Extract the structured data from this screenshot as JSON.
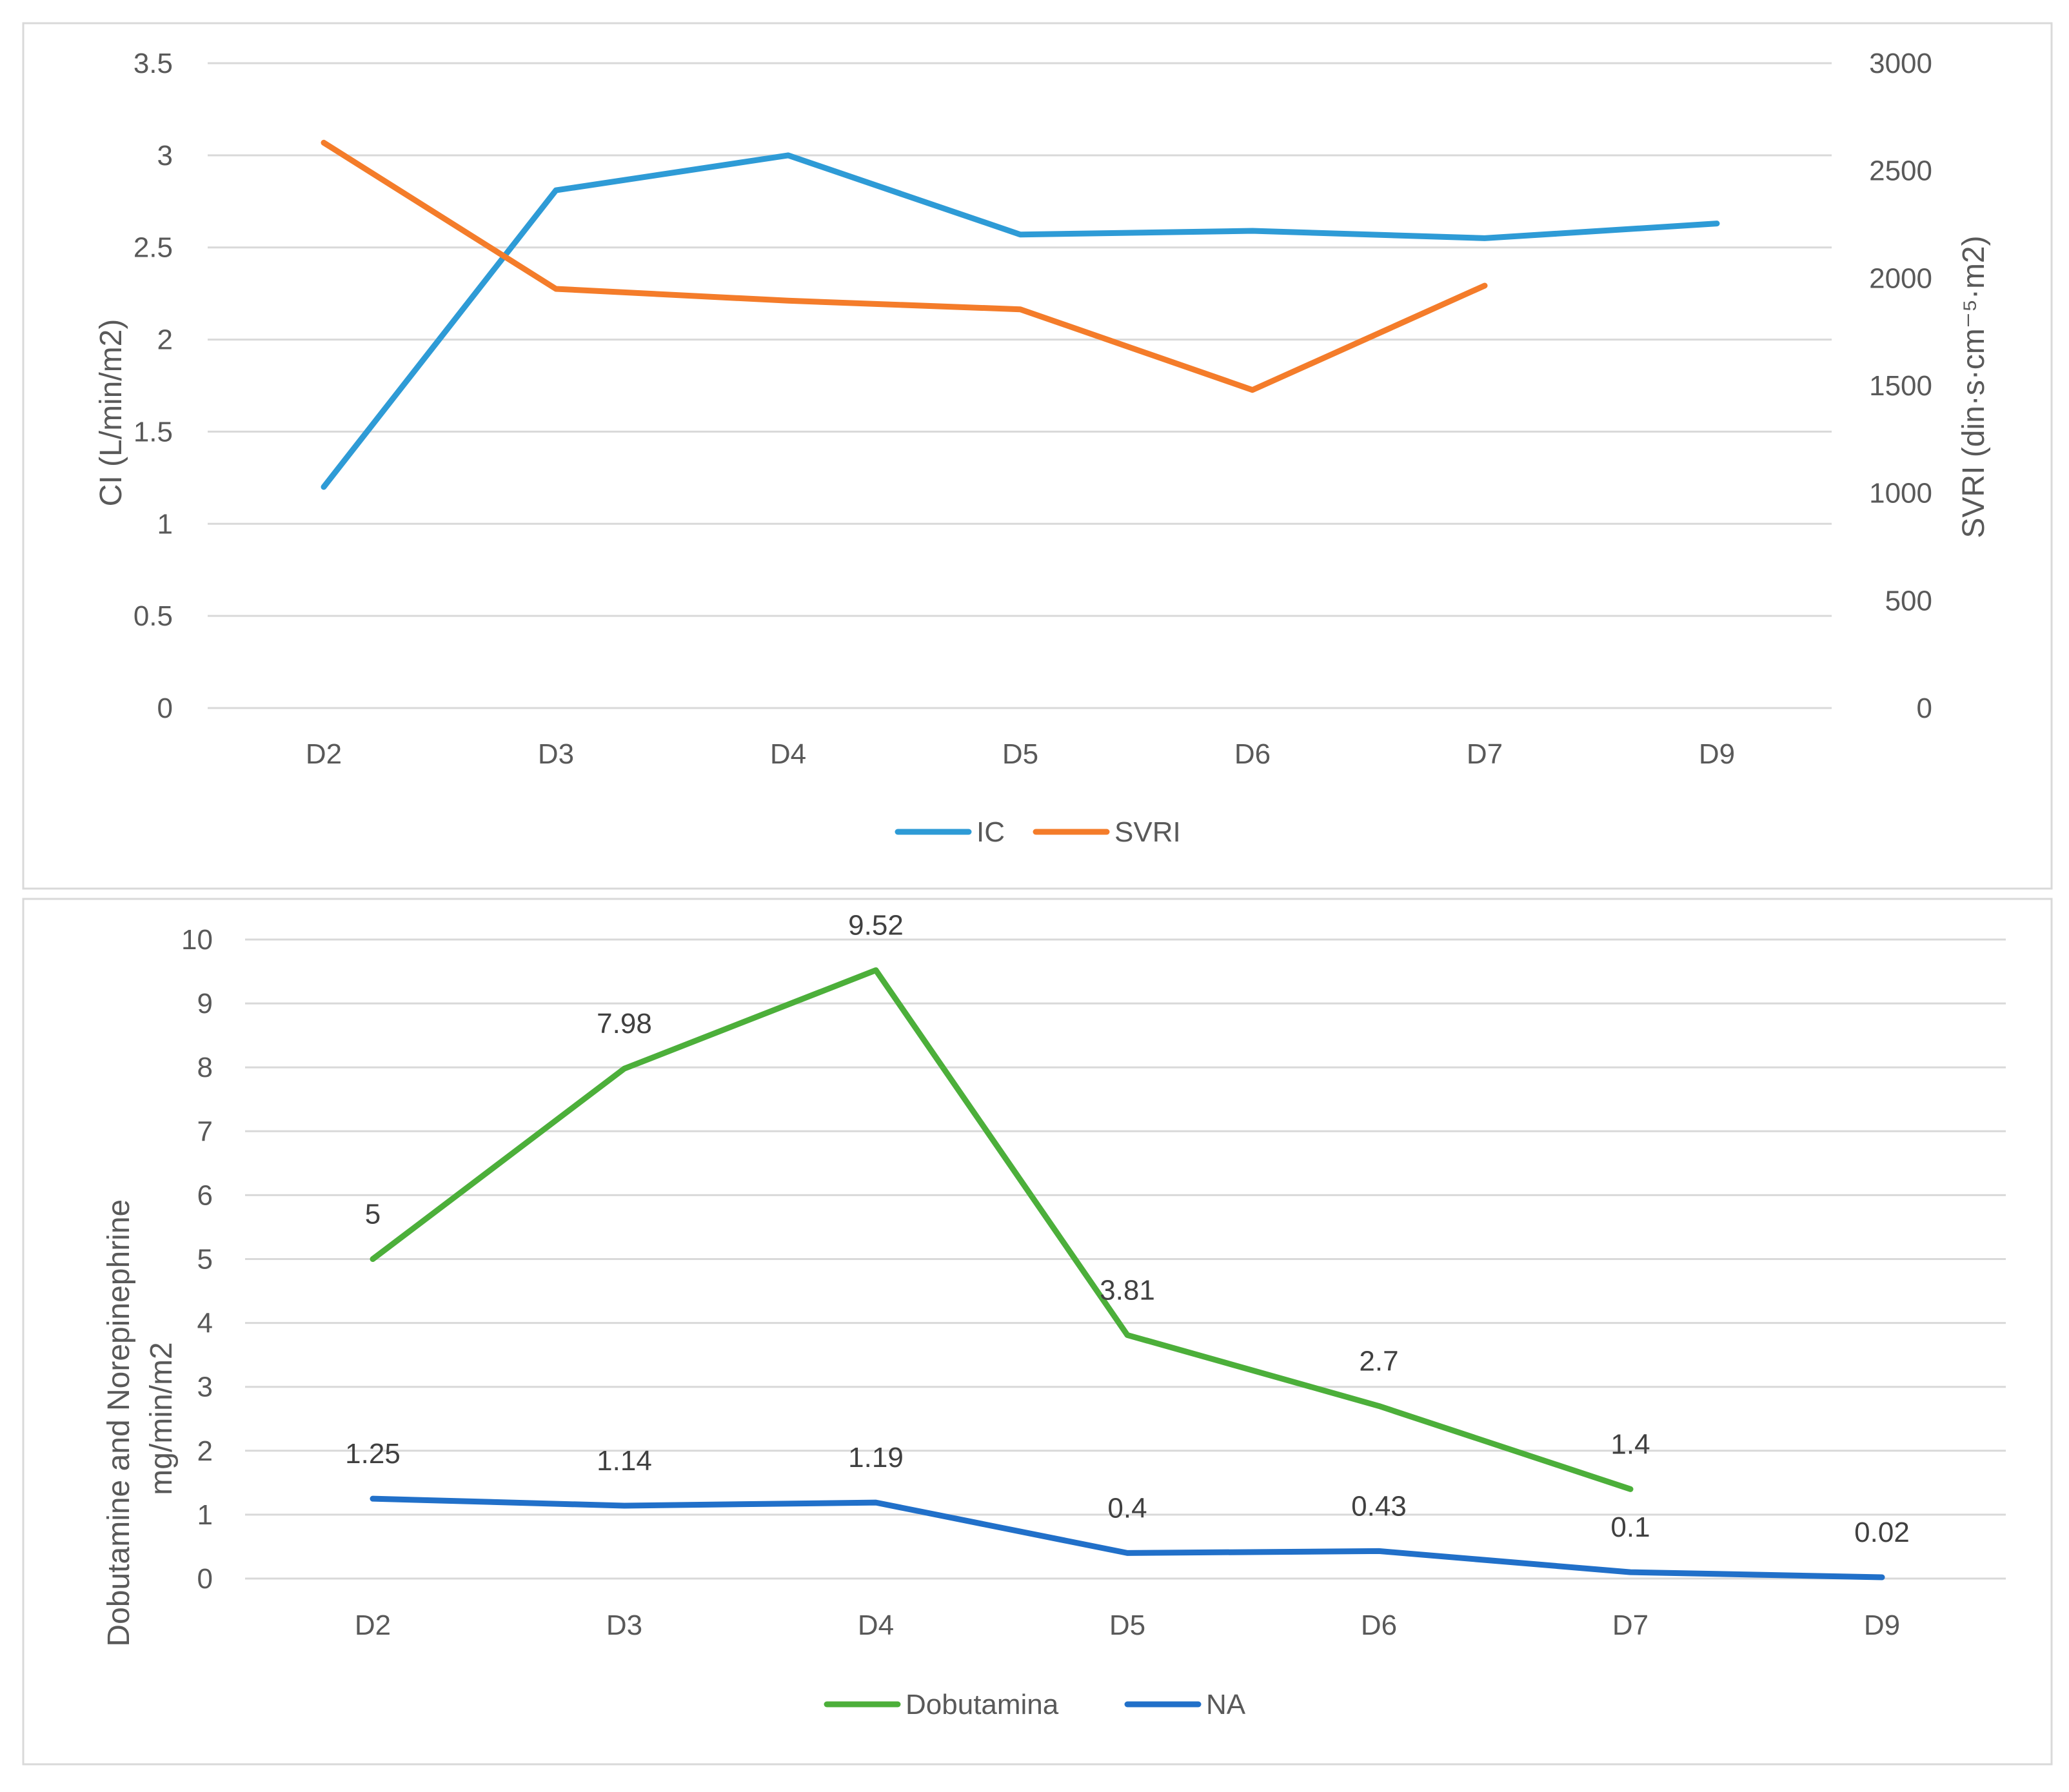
{
  "chart_data": [
    {
      "type": "line",
      "categories": [
        "D2",
        "D3",
        "D4",
        "D5",
        "D6",
        "D7",
        "D9"
      ],
      "series": [
        {
          "name": "IC",
          "axis": "left",
          "color": "#2e9bd6",
          "values": [
            1.2,
            2.81,
            3.0,
            2.57,
            2.59,
            2.55,
            2.63
          ]
        },
        {
          "name": "SVRI",
          "axis": "right",
          "color": "#f47c2a",
          "values": [
            2630,
            1950,
            1895,
            1855,
            1480,
            1965,
            null
          ]
        }
      ],
      "ylabel": "CI (L/min/m2)",
      "ylabel_right": "SVRI (din·s·cm⁻⁵·m2)",
      "ylim": [
        0,
        3.5
      ],
      "ylim_right": [
        0,
        3000
      ],
      "yticks": [
        "0",
        "0.5",
        "1",
        "1.5",
        "2",
        "2.5",
        "3",
        "3.5"
      ],
      "yticks_right": [
        "0",
        "500",
        "1000",
        "1500",
        "2000",
        "2500",
        "3000"
      ],
      "grid": true,
      "legend": "bottom"
    },
    {
      "type": "line",
      "categories": [
        "D2",
        "D3",
        "D4",
        "D5",
        "D6",
        "D7",
        "D9"
      ],
      "series": [
        {
          "name": "Dobutamina",
          "color": "#4caf3a",
          "values": [
            5,
            7.98,
            9.52,
            3.81,
            2.7,
            1.4,
            null
          ],
          "labels": [
            "5",
            "7.98",
            "9.52",
            "3.81",
            "2.7",
            "1.4",
            ""
          ]
        },
        {
          "name": "NA",
          "color": "#2170c9",
          "values": [
            1.25,
            1.14,
            1.19,
            0.4,
            0.43,
            0.1,
            0.02
          ],
          "labels": [
            "1.25",
            "1.14",
            "1.19",
            "0.4",
            "0.43",
            "0.1",
            "0.02"
          ]
        }
      ],
      "ylabel_line1": "Dobutamine and Norepinephrine",
      "ylabel_line2": "mg/min/m2",
      "ylim": [
        0,
        10
      ],
      "yticks": [
        "0",
        "1",
        "2",
        "3",
        "4",
        "5",
        "6",
        "7",
        "8",
        "9",
        "10"
      ],
      "grid": true,
      "legend": "bottom"
    }
  ]
}
